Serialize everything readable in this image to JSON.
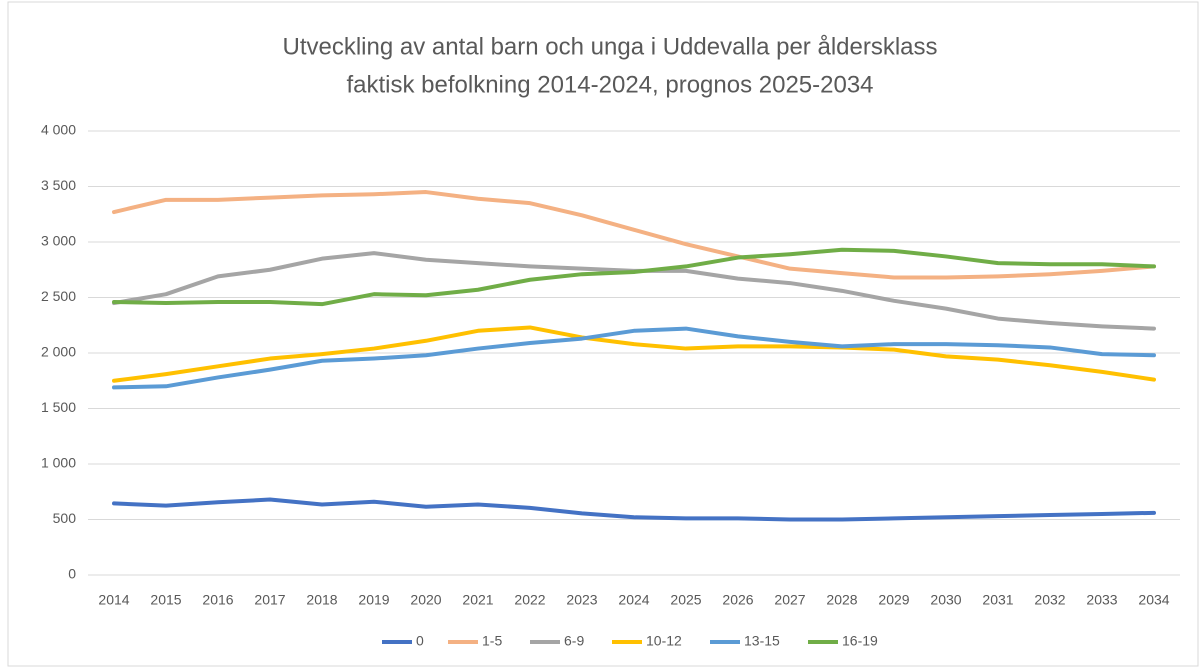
{
  "chart_data": {
    "type": "line",
    "title": "Utveckling av antal barn och unga i Uddevalla per åldersklass",
    "subtitle": "faktisk befolkning 2014-2024, prognos 2025-2034",
    "categories": [
      "2014",
      "2015",
      "2016",
      "2017",
      "2018",
      "2019",
      "2020",
      "2021",
      "2022",
      "2023",
      "2024",
      "2025",
      "2026",
      "2027",
      "2028",
      "2029",
      "2030",
      "2031",
      "2032",
      "2033",
      "2034"
    ],
    "series": [
      {
        "name": "0",
        "color": "#4472c4",
        "values": [
          645,
          625,
          655,
          680,
          635,
          660,
          615,
          635,
          605,
          555,
          520,
          510,
          510,
          500,
          500,
          510,
          520,
          530,
          540,
          550,
          560
        ]
      },
      {
        "name": "1-5",
        "color": "#f4b183",
        "values": [
          3270,
          3380,
          3380,
          3400,
          3420,
          3430,
          3450,
          3390,
          3350,
          3240,
          3110,
          2980,
          2870,
          2760,
          2720,
          2680,
          2680,
          2690,
          2710,
          2740,
          2780
        ]
      },
      {
        "name": "6-9",
        "color": "#a5a5a5",
        "values": [
          2450,
          2530,
          2690,
          2750,
          2850,
          2900,
          2840,
          2810,
          2780,
          2760,
          2740,
          2740,
          2670,
          2630,
          2560,
          2470,
          2400,
          2310,
          2270,
          2240,
          2220
        ]
      },
      {
        "name": "10-12",
        "color": "#ffc000",
        "values": [
          1750,
          1810,
          1880,
          1950,
          1990,
          2040,
          2110,
          2200,
          2230,
          2140,
          2080,
          2040,
          2060,
          2060,
          2050,
          2030,
          1970,
          1940,
          1890,
          1830,
          1760
        ]
      },
      {
        "name": "13-15",
        "color": "#5b9bd5",
        "values": [
          1690,
          1700,
          1780,
          1850,
          1930,
          1950,
          1980,
          2040,
          2090,
          2130,
          2200,
          2220,
          2150,
          2100,
          2060,
          2080,
          2080,
          2070,
          2050,
          1990,
          1980
        ]
      },
      {
        "name": "16-19",
        "color": "#70ad47",
        "values": [
          2460,
          2450,
          2460,
          2460,
          2440,
          2530,
          2520,
          2570,
          2660,
          2710,
          2730,
          2780,
          2860,
          2890,
          2930,
          2920,
          2870,
          2810,
          2800,
          2800,
          2780
        ]
      }
    ],
    "ylim": [
      0,
      4000
    ],
    "yticks": [
      0,
      500,
      {
        "value": 1000,
        "label": "1 000"
      },
      {
        "value": 1500,
        "label": "1 500"
      },
      {
        "value": 2000,
        "label": "2 000"
      },
      {
        "value": 2500,
        "label": "2 500"
      },
      {
        "value": 3000,
        "label": "3 000"
      },
      {
        "value": 3500,
        "label": "3 500"
      },
      {
        "value": 4000,
        "label": "4 000"
      }
    ],
    "grid": true,
    "legend": "bottom"
  }
}
